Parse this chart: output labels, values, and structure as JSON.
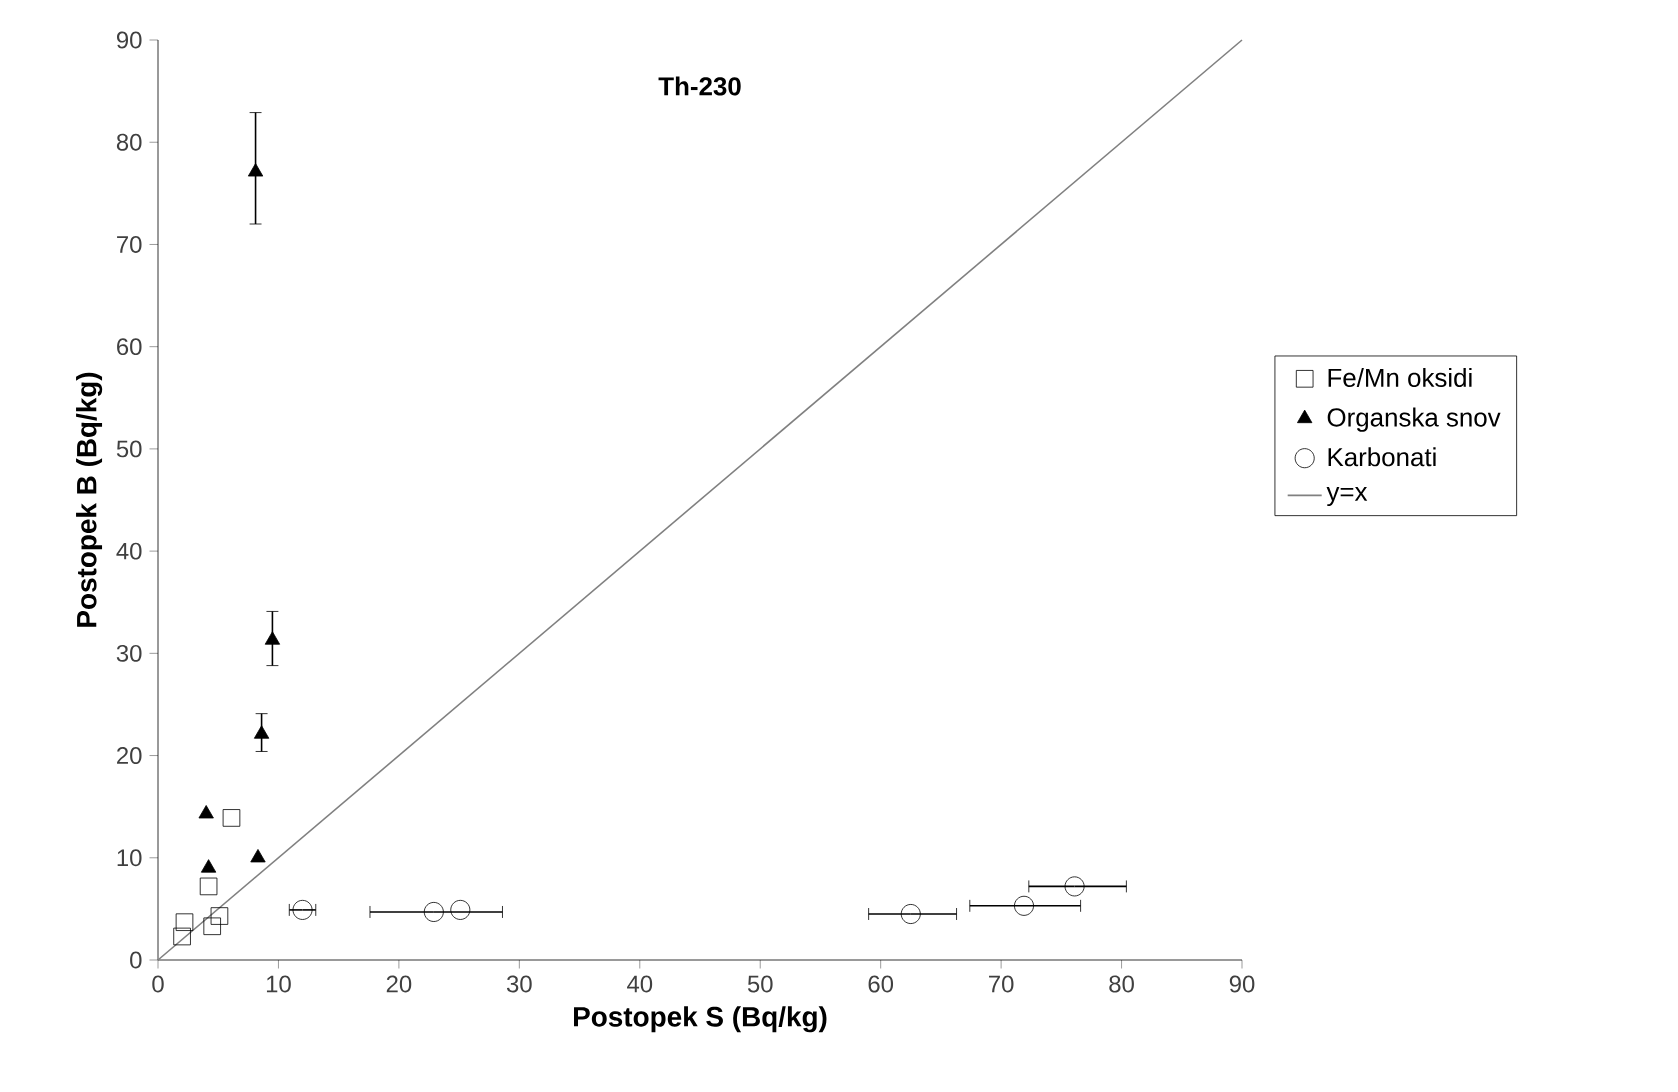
{
  "chart_data": {
    "type": "scatter",
    "title": "Th-230",
    "xlabel": "Postopek S (Bq/kg)",
    "ylabel": "Postopek B (Bq/kg)",
    "xlim": [
      0,
      90
    ],
    "ylim": [
      0,
      90
    ],
    "xticks": [
      0,
      10,
      20,
      30,
      40,
      50,
      60,
      70,
      80,
      90
    ],
    "yticks": [
      0,
      10,
      20,
      30,
      40,
      50,
      60,
      70,
      80,
      90
    ],
    "grid": false,
    "legend": "right",
    "series": [
      {
        "name": "Fe/Mn oksidi",
        "color": "#000000",
        "marker": "square",
        "x": [
          2.0,
          2.2,
          4.5,
          5.1,
          4.2,
          6.1
        ],
        "values": [
          2.3,
          3.7,
          3.3,
          4.3,
          7.2,
          13.9
        ]
      },
      {
        "name": "Organska snov",
        "color": "#000000",
        "marker": "triangle",
        "x": [
          4.0,
          4.2,
          8.3,
          8.6,
          9.5,
          8.1
        ],
        "values": [
          14.3,
          9.0,
          10.0,
          22.1,
          31.3,
          77.1
        ],
        "errors": [
          null,
          null,
          null,
          [
            20.4,
            24.1
          ],
          [
            28.8,
            34.1
          ],
          [
            72.0,
            82.9
          ]
        ]
      },
      {
        "name": "Karbonati",
        "color": "#000000",
        "marker": "circle",
        "x": [
          12.0,
          22.9,
          25.1,
          62.5,
          71.9,
          76.1
        ],
        "values": [
          4.9,
          4.7,
          4.9,
          4.5,
          5.3,
          7.2
        ],
        "xerrors": [
          [
            10.9,
            13.1
          ],
          [
            17.6,
            28.6
          ],
          null,
          [
            59.0,
            66.3
          ],
          [
            67.4,
            76.6
          ],
          [
            72.3,
            80.4
          ]
        ]
      },
      {
        "name": "y=x",
        "type": "line",
        "color": "#808080",
        "line_style": "solid",
        "marker": "none",
        "x": [
          0,
          90
        ],
        "values": [
          0,
          90
        ]
      }
    ]
  }
}
